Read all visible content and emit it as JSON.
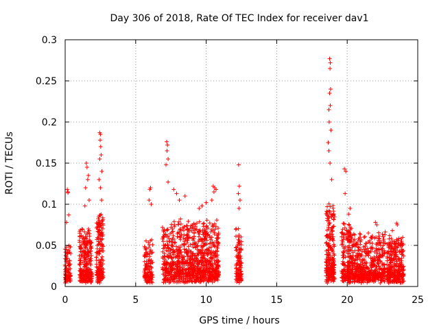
{
  "chart_data": {
    "type": "scatter",
    "title": "Day 306 of 2018, Rate Of TEC Index for receiver dav1",
    "xlabel": "GPS time / hours",
    "ylabel": "ROTI / TECUs",
    "xlim": [
      0,
      25
    ],
    "ylim": [
      0,
      0.3
    ],
    "xticks": [
      0,
      5,
      10,
      15,
      20,
      25
    ],
    "xtick_labels": [
      "0",
      "5",
      "10",
      "15",
      "20",
      "25"
    ],
    "yticks": [
      0,
      0.05,
      0.1,
      0.15,
      0.2,
      0.25,
      0.3
    ],
    "ytick_labels": [
      "0",
      "0.05",
      "0.1",
      "0.15",
      "0.2",
      "0.25",
      "0.3"
    ],
    "grid": true,
    "marker": "+",
    "marker_color": "#ff0000",
    "series": [
      {
        "name": "ROTI",
        "clusters": [
          {
            "x_start": 0.0,
            "x_end": 0.4,
            "y_base": 0.022,
            "y_spread": 0.012,
            "n": 90,
            "x": [
              0.15,
              0.2,
              0.25,
              0.1,
              0.3,
              0.2
            ],
            "y": [
              0.118,
              0.114,
              0.087,
              0.078,
              0.031,
              0.115
            ]
          },
          {
            "x_start": 1.0,
            "x_end": 1.9,
            "y_base": 0.03,
            "y_spread": 0.018,
            "n": 260,
            "x": [
              1.5,
              1.55,
              1.6,
              1.45,
              1.7,
              1.4,
              1.2,
              1.65
            ],
            "y": [
              0.15,
              0.145,
              0.13,
              0.12,
              0.105,
              0.098,
              0.07,
              0.135
            ]
          },
          {
            "x_start": 2.2,
            "x_end": 2.7,
            "y_base": 0.035,
            "y_spread": 0.025,
            "n": 170,
            "x": [
              2.45,
              2.5,
              2.48,
              2.52,
              2.55,
              2.45,
              2.6,
              2.4,
              2.5,
              2.58
            ],
            "y": [
              0.187,
              0.185,
              0.178,
              0.17,
              0.16,
              0.155,
              0.14,
              0.13,
              0.12,
              0.105
            ]
          },
          {
            "x_start": 5.6,
            "x_end": 6.2,
            "y_base": 0.03,
            "y_spread": 0.012,
            "n": 120,
            "x": [
              6.0,
              6.05,
              5.95,
              6.1
            ],
            "y": [
              0.118,
              0.12,
              0.105,
              0.1
            ]
          },
          {
            "x_start": 6.9,
            "x_end": 9.2,
            "y_base": 0.03,
            "y_spread": 0.022,
            "n": 520,
            "x": [
              7.2,
              7.25,
              7.22,
              7.3,
              7.15,
              7.3,
              7.7,
              7.9,
              8.5,
              8.1
            ],
            "y": [
              0.176,
              0.172,
              0.165,
              0.155,
              0.148,
              0.127,
              0.118,
              0.113,
              0.11,
              0.105
            ]
          },
          {
            "x_start": 9.2,
            "x_end": 10.9,
            "y_base": 0.03,
            "y_spread": 0.022,
            "n": 420,
            "x": [
              10.5,
              10.6,
              10.55,
              10.7,
              10.4,
              10.0,
              9.7,
              9.5
            ],
            "y": [
              0.122,
              0.12,
              0.115,
              0.118,
              0.105,
              0.102,
              0.098,
              0.095
            ]
          },
          {
            "x_start": 12.1,
            "x_end": 12.5,
            "y_base": 0.025,
            "y_spread": 0.02,
            "n": 120,
            "x": [
              12.3,
              12.35,
              12.28,
              12.4,
              12.32
            ],
            "y": [
              0.148,
              0.122,
              0.113,
              0.105,
              0.095
            ]
          },
          {
            "x_start": 18.5,
            "x_end": 19.1,
            "y_base": 0.035,
            "y_spread": 0.03,
            "n": 230,
            "x": [
              18.75,
              18.8,
              18.78,
              18.82,
              18.75,
              18.8,
              18.7,
              18.72,
              18.85,
              18.65,
              18.7,
              18.78,
              18.9
            ],
            "y": [
              0.277,
              0.272,
              0.265,
              0.24,
              0.235,
              0.22,
              0.215,
              0.2,
              0.19,
              0.175,
              0.165,
              0.15,
              0.13
            ]
          },
          {
            "x_start": 19.6,
            "x_end": 20.3,
            "y_base": 0.035,
            "y_spread": 0.02,
            "n": 150,
            "x": [
              19.8,
              19.9,
              19.85,
              20.2,
              20.1
            ],
            "y": [
              0.143,
              0.14,
              0.113,
              0.095,
              0.088
            ]
          },
          {
            "x_start": 20.0,
            "x_end": 22.7,
            "y_base": 0.025,
            "y_spread": 0.018,
            "n": 560,
            "x": [
              22.0,
              22.1,
              21.5,
              21.2,
              20.8
            ],
            "y": [
              0.078,
              0.075,
              0.065,
              0.06,
              0.058
            ]
          },
          {
            "x_start": 22.8,
            "x_end": 24.0,
            "y_base": 0.022,
            "y_spread": 0.016,
            "n": 300,
            "x": [
              23.5,
              23.55,
              23.2,
              23.0,
              23.8
            ],
            "y": [
              0.077,
              0.075,
              0.068,
              0.062,
              0.058
            ]
          }
        ]
      }
    ]
  }
}
